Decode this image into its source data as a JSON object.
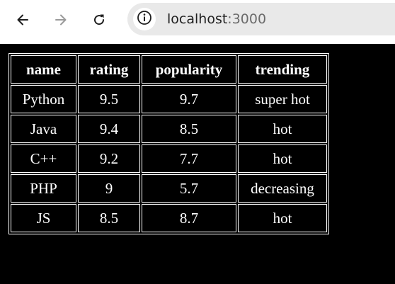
{
  "browser": {
    "url_host": "localhost",
    "url_port": ":3000",
    "icons": {
      "back": "arrow-left-icon",
      "forward": "arrow-right-icon",
      "reload": "reload-icon",
      "site_info": "info-icon"
    }
  },
  "table": {
    "columns": [
      "name",
      "rating",
      "popularity",
      "trending"
    ],
    "rows": [
      [
        "Python",
        "9.5",
        "9.7",
        "super hot"
      ],
      [
        "Java",
        "9.4",
        "8.5",
        "hot"
      ],
      [
        "C++",
        "9.2",
        "7.7",
        "hot"
      ],
      [
        "PHP",
        "9",
        "5.7",
        "decreasing"
      ],
      [
        "JS",
        "8.5",
        "8.7",
        "hot"
      ]
    ]
  },
  "colors": {
    "page_background": "#000000",
    "table_text": "#ffffff",
    "table_border": "#ffffff",
    "toolbar_background": "#ffffff",
    "omnibox_background": "#e9e9e9"
  }
}
